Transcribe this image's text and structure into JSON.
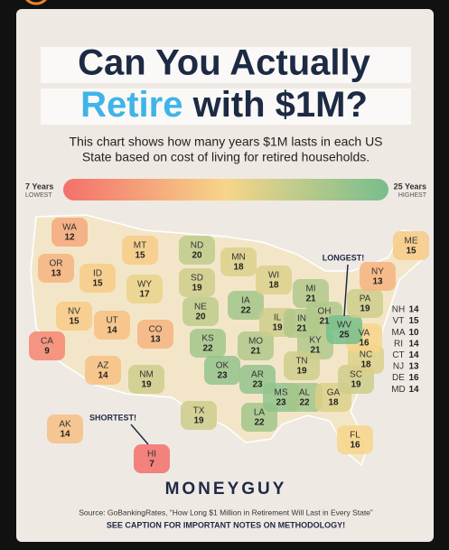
{
  "header": {
    "title_line1": "Can You Actually",
    "title_highlight": "Retire",
    "title_rest": "with $1M?",
    "subtitle_line1": "This chart shows how many years $1M lasts in each US",
    "subtitle_line2": "State based on cost of living for retired households."
  },
  "legend": {
    "low_label": "7 Years",
    "low_caption": "LOWEST",
    "high_label": "25 Years",
    "high_caption": "HIGHEST"
  },
  "map": {
    "states": [
      {
        "abbr": "WA",
        "years": 12
      },
      {
        "abbr": "OR",
        "years": 13
      },
      {
        "abbr": "CA",
        "years": 9
      },
      {
        "abbr": "NV",
        "years": 15
      },
      {
        "abbr": "ID",
        "years": 15
      },
      {
        "abbr": "MT",
        "years": 15
      },
      {
        "abbr": "WY",
        "years": 17
      },
      {
        "abbr": "UT",
        "years": 14
      },
      {
        "abbr": "CO",
        "years": 13
      },
      {
        "abbr": "AZ",
        "years": 14
      },
      {
        "abbr": "NM",
        "years": 19
      },
      {
        "abbr": "ND",
        "years": 20
      },
      {
        "abbr": "SD",
        "years": 19
      },
      {
        "abbr": "NE",
        "years": 20
      },
      {
        "abbr": "KS",
        "years": 22
      },
      {
        "abbr": "OK",
        "years": 23
      },
      {
        "abbr": "TX",
        "years": 19
      },
      {
        "abbr": "MN",
        "years": 18
      },
      {
        "abbr": "IA",
        "years": 22
      },
      {
        "abbr": "MO",
        "years": 21
      },
      {
        "abbr": "AR",
        "years": 23
      },
      {
        "abbr": "LA",
        "years": 22
      },
      {
        "abbr": "WI",
        "years": 18
      },
      {
        "abbr": "IL",
        "years": 19
      },
      {
        "abbr": "MS",
        "years": 23
      },
      {
        "abbr": "MI",
        "years": 21
      },
      {
        "abbr": "IN",
        "years": 21
      },
      {
        "abbr": "KY",
        "years": 21
      },
      {
        "abbr": "TN",
        "years": 19
      },
      {
        "abbr": "AL",
        "years": 22
      },
      {
        "abbr": "OH",
        "years": 21
      },
      {
        "abbr": "GA",
        "years": 18
      },
      {
        "abbr": "FL",
        "years": 16
      },
      {
        "abbr": "SC",
        "years": 19
      },
      {
        "abbr": "NC",
        "years": 18
      },
      {
        "abbr": "VA",
        "years": 16
      },
      {
        "abbr": "WV",
        "years": 25
      },
      {
        "abbr": "PA",
        "years": 19
      },
      {
        "abbr": "NY",
        "years": 13
      },
      {
        "abbr": "ME",
        "years": 15
      },
      {
        "abbr": "AK",
        "years": 14
      },
      {
        "abbr": "HI",
        "years": 7
      }
    ],
    "small_states": [
      {
        "abbr": "NH",
        "years": 14
      },
      {
        "abbr": "VT",
        "years": 15
      },
      {
        "abbr": "MA",
        "years": 10
      },
      {
        "abbr": "RI",
        "years": 14
      },
      {
        "abbr": "CT",
        "years": 14
      },
      {
        "abbr": "NJ",
        "years": 13
      },
      {
        "abbr": "DE",
        "years": 16
      },
      {
        "abbr": "MD",
        "years": 14
      }
    ],
    "callouts": {
      "longest": "LONGEST!",
      "shortest": "SHORTEST!"
    }
  },
  "footer": {
    "brand": "MONEYGUY",
    "source": "Source: GoBankingRates, “How Long $1 Million in Retirement Will Last in Every State”",
    "note": "SEE CAPTION FOR IMPORTANT NOTES ON METHODOLOGY!"
  }
}
